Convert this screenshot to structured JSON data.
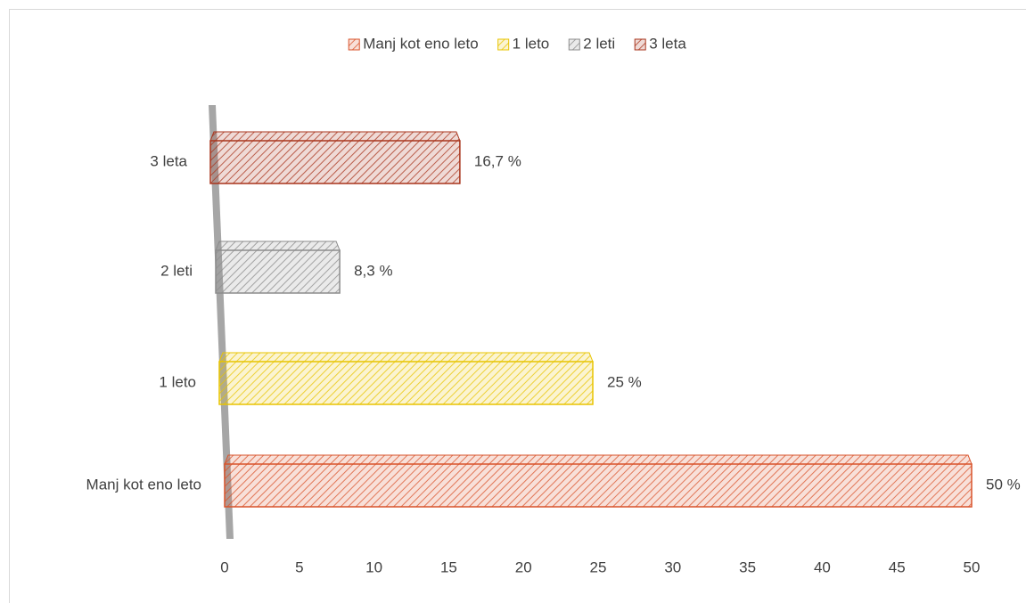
{
  "chart_data": {
    "type": "hbar",
    "categories": [
      "Manj kot eno leto",
      "1 leto",
      "2 leti",
      "3 leta"
    ],
    "values": [
      50,
      25,
      8.3,
      16.7
    ],
    "value_labels": [
      "50 %",
      "25 %",
      "8,3 %",
      "16,7 %"
    ],
    "colors": [
      "#d9532b",
      "#e8c400",
      "#8c8c8c",
      "#a8341c"
    ],
    "xlim": [
      0,
      50
    ],
    "xticks": [
      0,
      5,
      10,
      15,
      20,
      25,
      30,
      35,
      40,
      45,
      50
    ],
    "grid": false,
    "legend": "top"
  }
}
